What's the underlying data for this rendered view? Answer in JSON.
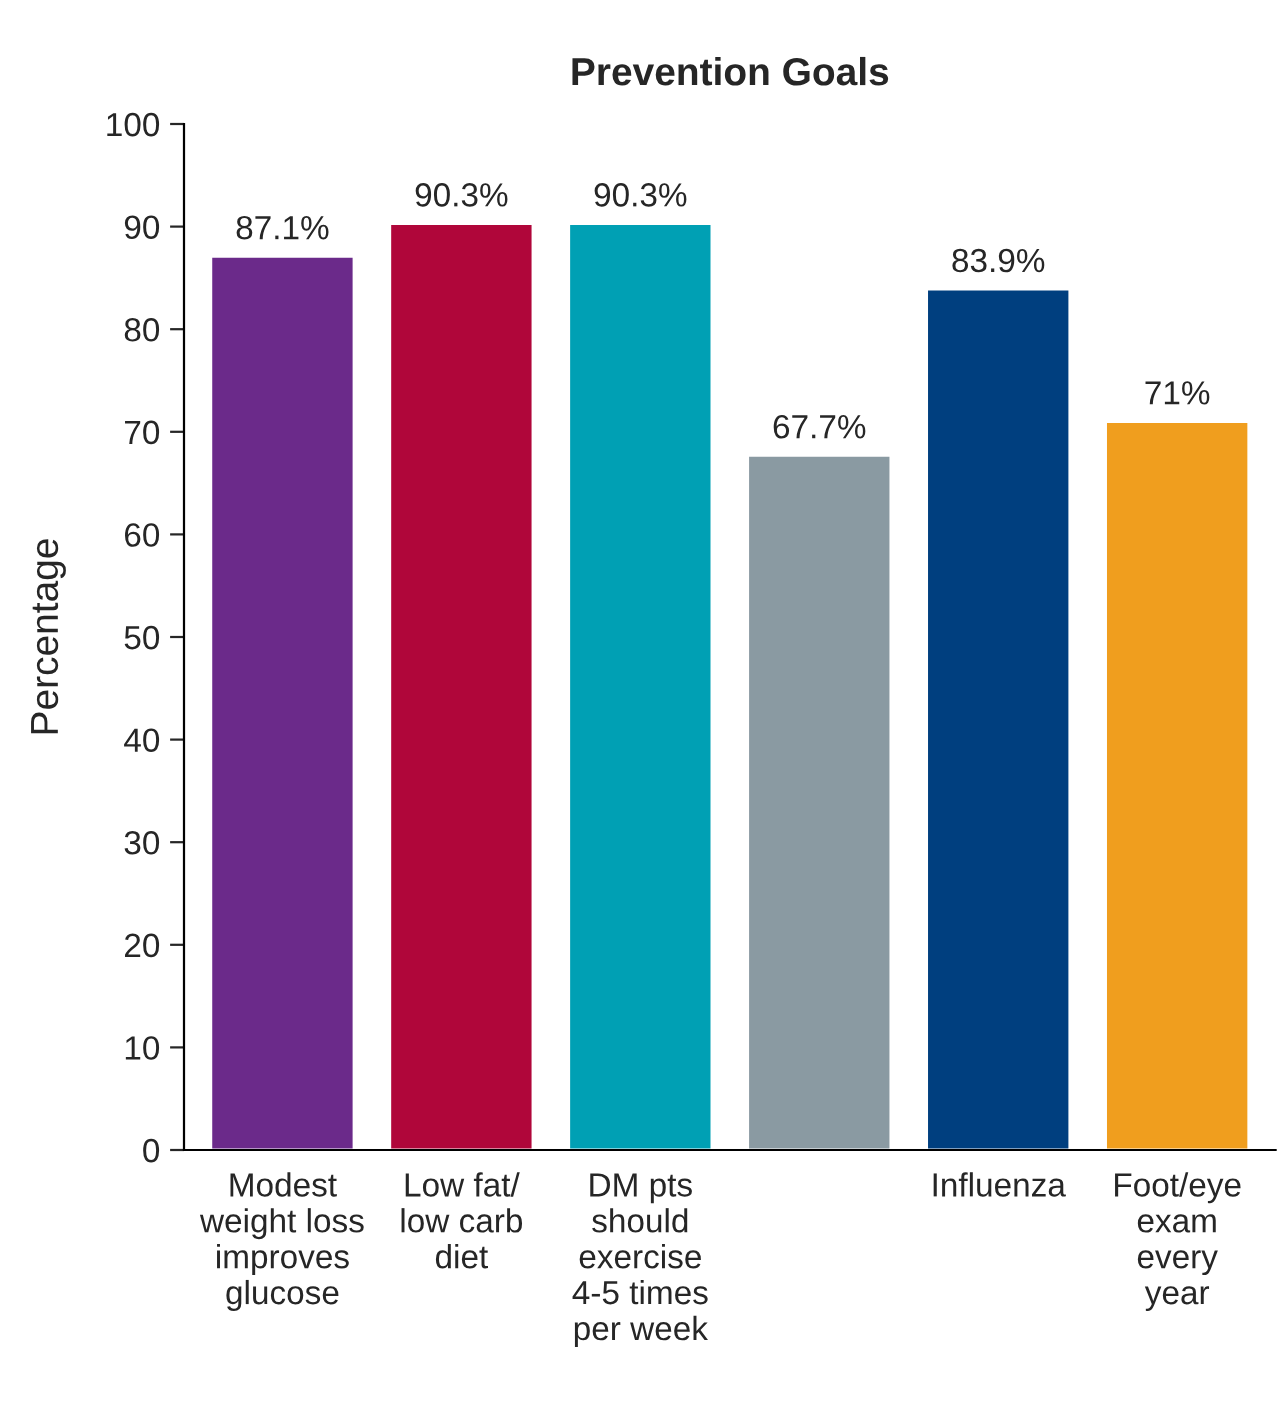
{
  "chart_data": {
    "type": "bar",
    "title": "Prevention Goals",
    "ylabel": "Percentage",
    "categories": [
      "Modest\nweight loss\nimproves\nglucose",
      "Low fat/\nlow carb\ndiet",
      "DM pts\nshould\nexercise\n4-5 times\nper week",
      null,
      "Influenza",
      "Foot/eye\nexam\nevery\nyear"
    ],
    "values": [
      87.1,
      90.3,
      90.3,
      67.7,
      83.9,
      71
    ],
    "colors": [
      "#6b2a8a",
      "#b0063a",
      "#00a0b4",
      "#8a9aa2",
      "#003f7f",
      "#f09e1e"
    ],
    "value_labels": [
      "87.1%",
      "90.3%",
      "90.3%",
      "67.7%",
      "83.9%",
      "71%"
    ],
    "ylim": [
      0,
      100
    ],
    "yticks": [
      0,
      10,
      20,
      30,
      40,
      50,
      60,
      70,
      80,
      90,
      100
    ],
    "grid": false,
    "legend": false
  }
}
